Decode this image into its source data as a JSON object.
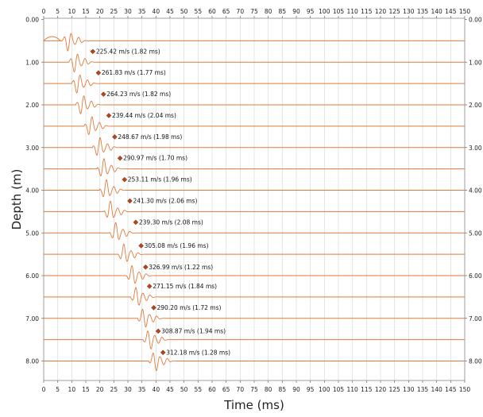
{
  "chart_data": {
    "type": "line",
    "xlabel": "Time (ms)",
    "ylabel": "Depth (m)",
    "xlim": [
      0,
      150
    ],
    "ylim": [
      0,
      8.5
    ],
    "x_ticks": [
      0,
      5,
      10,
      15,
      20,
      25,
      30,
      35,
      40,
      45,
      50,
      55,
      60,
      65,
      70,
      75,
      80,
      85,
      90,
      95,
      100,
      105,
      110,
      115,
      120,
      125,
      130,
      135,
      140,
      145,
      150
    ],
    "y_ticks": [
      "0.00",
      "1.00",
      "2.00",
      "3.00",
      "4.00",
      "5.00",
      "6.00",
      "7.00",
      "8.00"
    ],
    "y_tick_values": [
      0,
      1,
      2,
      3,
      4,
      5,
      6,
      7,
      8
    ],
    "grid": true,
    "trace_color": "#e07a3a",
    "marker_color": "#b5461c",
    "traces": [
      {
        "depth": 0.5,
        "onset": 6.6
      },
      {
        "depth": 1.0,
        "onset": 9.0
      },
      {
        "depth": 1.5,
        "onset": 10.0
      },
      {
        "depth": 2.0,
        "onset": 11.5
      },
      {
        "depth": 2.5,
        "onset": 14.5
      },
      {
        "depth": 3.0,
        "onset": 17.5
      },
      {
        "depth": 3.5,
        "onset": 19.0
      },
      {
        "depth": 4.0,
        "onset": 20.0
      },
      {
        "depth": 4.5,
        "onset": 21.5
      },
      {
        "depth": 5.0,
        "onset": 23.5
      },
      {
        "depth": 5.5,
        "onset": 26.5
      },
      {
        "depth": 6.0,
        "onset": 29.5
      },
      {
        "depth": 6.5,
        "onset": 31.0
      },
      {
        "depth": 7.0,
        "onset": 33.5
      },
      {
        "depth": 7.5,
        "onset": 35.5
      },
      {
        "depth": 8.0,
        "onset": 37.5
      }
    ],
    "picks": [
      {
        "time": 17.5,
        "depth": 0.75,
        "label": "225.42 m/s (1.82 ms)"
      },
      {
        "time": 19.5,
        "depth": 1.25,
        "label": "261.83 m/s (1.77 ms)"
      },
      {
        "time": 21.3,
        "depth": 1.75,
        "label": "264.23 m/s (1.82 ms)"
      },
      {
        "time": 23.2,
        "depth": 2.25,
        "label": "239.44 m/s (2.04 ms)"
      },
      {
        "time": 25.3,
        "depth": 2.75,
        "label": "248.67 m/s (1.98 ms)"
      },
      {
        "time": 27.2,
        "depth": 3.25,
        "label": "290.97 m/s (1.70 ms)"
      },
      {
        "time": 28.8,
        "depth": 3.75,
        "label": "253.11 m/s (1.96 ms)"
      },
      {
        "time": 30.7,
        "depth": 4.25,
        "label": "241.30 m/s (2.06 ms)"
      },
      {
        "time": 32.8,
        "depth": 4.75,
        "label": "239.30 m/s (2.08 ms)"
      },
      {
        "time": 34.7,
        "depth": 5.3,
        "label": "305.08 m/s (1.96 ms)"
      },
      {
        "time": 36.3,
        "depth": 5.8,
        "label": "326.99 m/s (1.22 ms)"
      },
      {
        "time": 37.7,
        "depth": 6.25,
        "label": "271.15 m/s (1.84 ms)"
      },
      {
        "time": 39.2,
        "depth": 6.75,
        "label": "290.20 m/s (1.72 ms)"
      },
      {
        "time": 40.8,
        "depth": 7.3,
        "label": "308.87 m/s (1.94 ms)"
      },
      {
        "time": 42.5,
        "depth": 7.8,
        "label": "312.18 m/s (1.28 ms)"
      }
    ]
  }
}
